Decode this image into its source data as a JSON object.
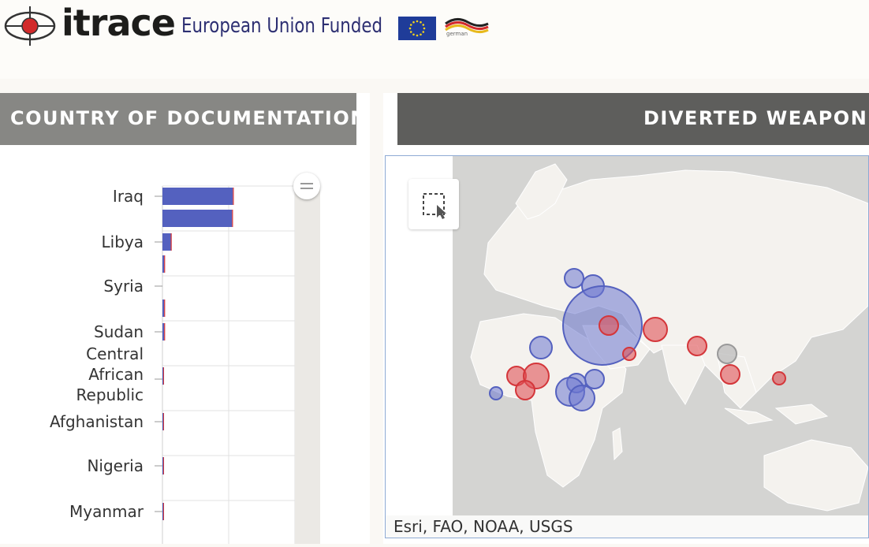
{
  "header": {
    "brand": "itrace",
    "funded_text": "European Union Funded",
    "partner_text": "german"
  },
  "panels": {
    "left_title": "COUNTRY OF DOCUMENTATION",
    "right_title": "DIVERTED WEAPONS"
  },
  "chart_data": {
    "type": "bar",
    "orientation": "horizontal",
    "categories": [
      "Iraq",
      "",
      "Libya",
      "Syria",
      "",
      "Sudan",
      "Central African Republic",
      "Afghanistan",
      "Nigeria",
      "Myanmar"
    ],
    "series": [
      {
        "values": [
          85,
          84,
          10,
          2,
          2,
          2,
          0.5,
          0.5,
          0.5,
          0.5
        ]
      },
      {
        "values": [
          2,
          2,
          2,
          2,
          2,
          2,
          1,
          1,
          1,
          1
        ]
      }
    ],
    "colors": [
      "#5461bf",
      "#d4363a"
    ],
    "xlim": [
      0,
      160
    ],
    "grid": true
  },
  "map": {
    "attribution": "Esri, FAO, NOAA, USGS",
    "colors": {
      "blue": "#6b76d0",
      "red": "#e05256",
      "grey": "#b8b8b8"
    }
  },
  "icons": {
    "select_tool": "rectangle-select-icon",
    "scroll_handle": "drag-handle-icon"
  }
}
